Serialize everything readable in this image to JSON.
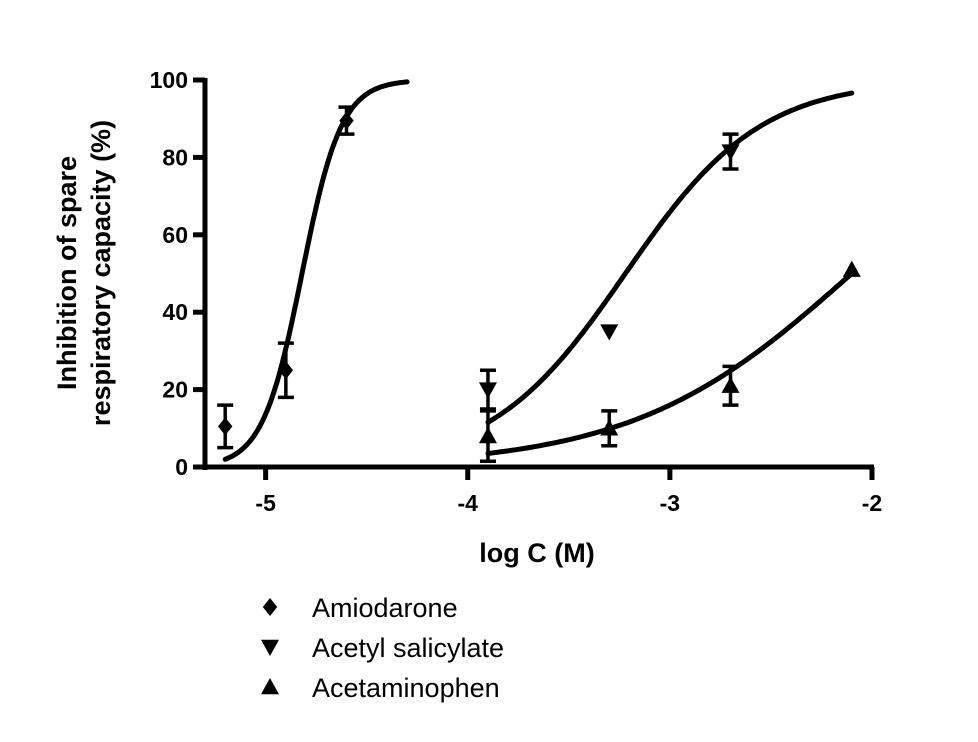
{
  "chart_data": {
    "type": "scatter",
    "xlabel": "log C (M)",
    "ylabel_lines": [
      "Inhibition of spare",
      "respiratory capacity (%)"
    ],
    "xlim": [
      -5.3,
      -2
    ],
    "ylim": [
      0,
      100
    ],
    "xticks": [
      -5,
      -4,
      -3,
      -2
    ],
    "yticks": [
      0,
      20,
      40,
      60,
      80,
      100
    ],
    "xtick_labels": [
      "-5",
      "-4",
      "-3",
      "-2"
    ],
    "ytick_labels": [
      "0",
      "20",
      "40",
      "60",
      "80",
      "100"
    ],
    "grid": false,
    "legend_placement": "bottom",
    "series": [
      {
        "name": "Amiodarone",
        "marker": "diamond",
        "x": [
          -5.2,
          -4.9,
          -4.6
        ],
        "y": [
          10.5,
          25,
          89.5
        ],
        "err": [
          5.5,
          7,
          3.5
        ],
        "fit": {
          "logEC50": -4.82,
          "hill": 4.45,
          "range": [
            -5.2,
            -4.3
          ]
        }
      },
      {
        "name": "Acetyl salicylate",
        "marker": "triangle-down",
        "x": [
          -3.9,
          -3.3,
          -2.7
        ],
        "y": [
          20,
          35,
          81.5
        ],
        "err": [
          5,
          0,
          4.5
        ],
        "fit": {
          "logEC50": -3.22,
          "hill": 1.3,
          "range": [
            -3.9,
            -2.1
          ]
        }
      },
      {
        "name": "Acetaminophen",
        "marker": "triangle-up",
        "x": [
          -3.9,
          -3.3,
          -2.7,
          -2.1
        ],
        "y": [
          8,
          10,
          21,
          51
        ],
        "err": [
          6.5,
          4.5,
          5,
          0
        ],
        "fit": {
          "logEC50": -2.1,
          "hill": 0.8,
          "range": [
            -3.9,
            -2.1
          ]
        }
      }
    ]
  }
}
